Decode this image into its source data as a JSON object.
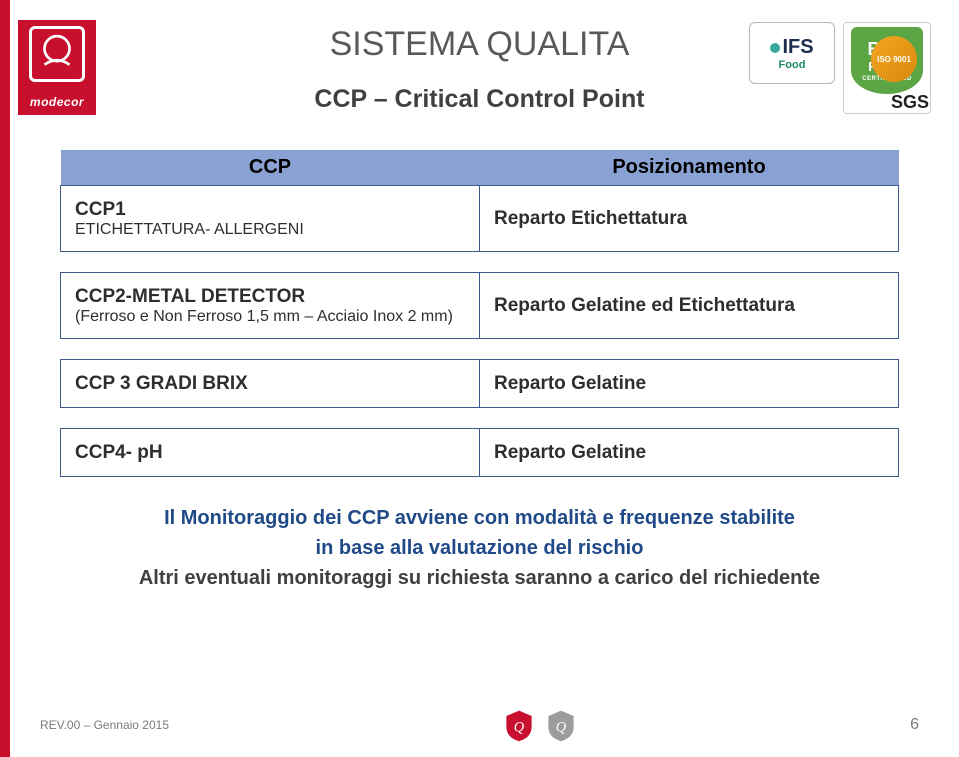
{
  "title": "SISTEMA QUALITA",
  "subtitle": "CCP – Critical Control Point",
  "logo_text": "modecor",
  "cert": {
    "ifs_main": "IFS",
    "ifs_sub": "Food",
    "brc_line1": "BRC",
    "brc_line2": "FOOD",
    "brc_line3": "CERTIFICATED",
    "sgs": "SGS",
    "iso": "ISO 9001"
  },
  "table": {
    "headers": [
      "CCP",
      "Posizionamento"
    ],
    "rows": [
      {
        "ccp": "CCP1",
        "ccp_sub": "ETICHETTATURA- ALLERGENI",
        "pos": "Reparto Etichettatura"
      },
      {
        "ccp": "CCP2-METAL DETECTOR",
        "ccp_sub": "(Ferroso e Non Ferroso 1,5 mm – Acciaio Inox 2 mm)",
        "pos": "Reparto Gelatine ed Etichettatura"
      },
      {
        "ccp": "CCP 3 GRADI BRIX",
        "ccp_sub": "",
        "pos": "Reparto Gelatine"
      },
      {
        "ccp": "CCP4- pH",
        "ccp_sub": "",
        "pos": "Reparto Gelatine"
      }
    ]
  },
  "note_line1": "Il Monitoraggio dei  CCP avviene con modalità e frequenze stabilite",
  "note_line2": "in base alla valutazione del rischio",
  "note_line3": "Altri eventuali monitoraggi su richiesta saranno a carico del richiedente",
  "footer_rev": "REV.00 – Gennaio 2015",
  "footer_page": "6",
  "colors": {
    "header_bg": "#8aa2d3",
    "border": "#3c5b8a",
    "brand_red": "#c8102e",
    "note_blue": "#1f4a87"
  }
}
